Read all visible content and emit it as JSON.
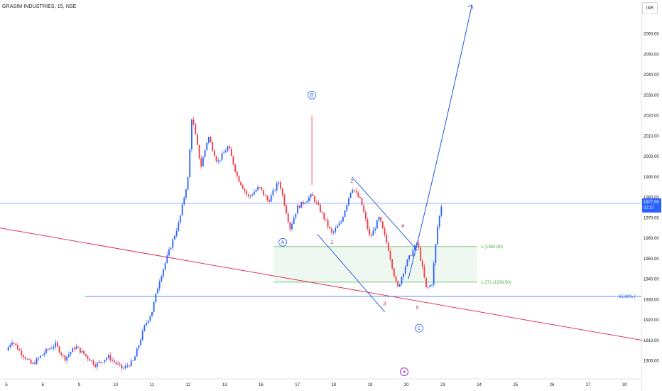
{
  "header": {
    "title": "GRASIM INDUSTRIES, 15, NSE",
    "currency": "INR"
  },
  "price_badge": {
    "price": "1977.05",
    "countdown": "02:37"
  },
  "annotations": {
    "wave_A": "A",
    "wave_B": "B",
    "wave_C": "C",
    "wave_1": "1",
    "wave_2": "2",
    "wave_3": "3",
    "wave_4": "4",
    "wave_5": "5",
    "fib_1": "1 (1955.90)",
    "fib_1272": "1.272 (1938.50)",
    "retrace": "61.80% ("
  },
  "colors": {
    "up": "#2962ff",
    "down": "#f23645",
    "trend_blue": "#1e53e5",
    "trend_red": "#e11d48",
    "fib": "#4caf50",
    "fib_zone": "#e8f5e9",
    "label_red": "#c2185b"
  },
  "chart_data": {
    "type": "candlestick",
    "symbol": "GRASIM INDUSTRIES",
    "interval": "15",
    "exchange": "NSE",
    "y_axis": {
      "ticks": [
        1900,
        1910,
        1920,
        1930,
        1940,
        1950,
        1960,
        1970,
        1980,
        1990,
        2000,
        2010,
        2020,
        2030,
        2040,
        2050,
        2060
      ],
      "range": [
        1895,
        2071
      ]
    },
    "x_axis": {
      "ticks": [
        "5",
        "6",
        "9",
        "10",
        "11",
        "12",
        "13",
        "16",
        "17",
        "18",
        "19",
        "20",
        "23",
        "24",
        "25",
        "26",
        "27",
        "30"
      ],
      "range": [
        0,
        17.75
      ]
    },
    "price_path": [
      [
        0,
        1905
      ],
      [
        0.15,
        1910
      ],
      [
        0.4,
        1904
      ],
      [
        0.7,
        1898
      ],
      [
        1.1,
        1905
      ],
      [
        1.35,
        1908
      ],
      [
        1.6,
        1901
      ],
      [
        1.9,
        1907
      ],
      [
        2.15,
        1903
      ],
      [
        2.45,
        1898
      ],
      [
        2.8,
        1902
      ],
      [
        3.2,
        1896
      ],
      [
        3.5,
        1900
      ],
      [
        3.8,
        1917
      ],
      [
        4.0,
        1924
      ],
      [
        4.2,
        1939
      ],
      [
        4.5,
        1955
      ],
      [
        4.75,
        1968
      ],
      [
        5.0,
        1990
      ],
      [
        5.1,
        2020
      ],
      [
        5.35,
        1995
      ],
      [
        5.55,
        2010
      ],
      [
        5.8,
        1997
      ],
      [
        6.1,
        2005
      ],
      [
        6.35,
        1990
      ],
      [
        6.65,
        1980
      ],
      [
        6.95,
        1985
      ],
      [
        7.2,
        1978
      ],
      [
        7.5,
        1988
      ],
      [
        7.8,
        1965
      ],
      [
        8.0,
        1975
      ],
      [
        8.4,
        1981
      ],
      [
        8.65,
        1973
      ],
      [
        8.95,
        1962
      ],
      [
        9.2,
        1968
      ],
      [
        9.5,
        1985
      ],
      [
        9.75,
        1978
      ],
      [
        10.0,
        1960
      ],
      [
        10.25,
        1970
      ],
      [
        10.5,
        1955
      ],
      [
        10.75,
        1935
      ],
      [
        11.0,
        1948
      ],
      [
        11.3,
        1958
      ],
      [
        11.55,
        1935
      ],
      [
        11.7,
        1938
      ],
      [
        11.85,
        1965
      ],
      [
        11.98,
        1978
      ]
    ],
    "elliott_waves": {
      "A": [
        7.6,
        1958
      ],
      "B": [
        8.4,
        2030
      ],
      "C": [
        11.35,
        1916
      ],
      "1": [
        8.95,
        1958
      ],
      "2": [
        9.5,
        1988
      ],
      "3": [
        10.4,
        1928
      ],
      "4": [
        10.9,
        1966
      ],
      "5": [
        11.3,
        1926
      ]
    },
    "horizontal_lines": {
      "last_price": 1977.05,
      "retracement_61_8": 1931.5
    },
    "fib_extension": {
      "level_1": 1955.9,
      "level_1_272": 1938.5
    },
    "current_price": 1977.05,
    "grid": false
  }
}
